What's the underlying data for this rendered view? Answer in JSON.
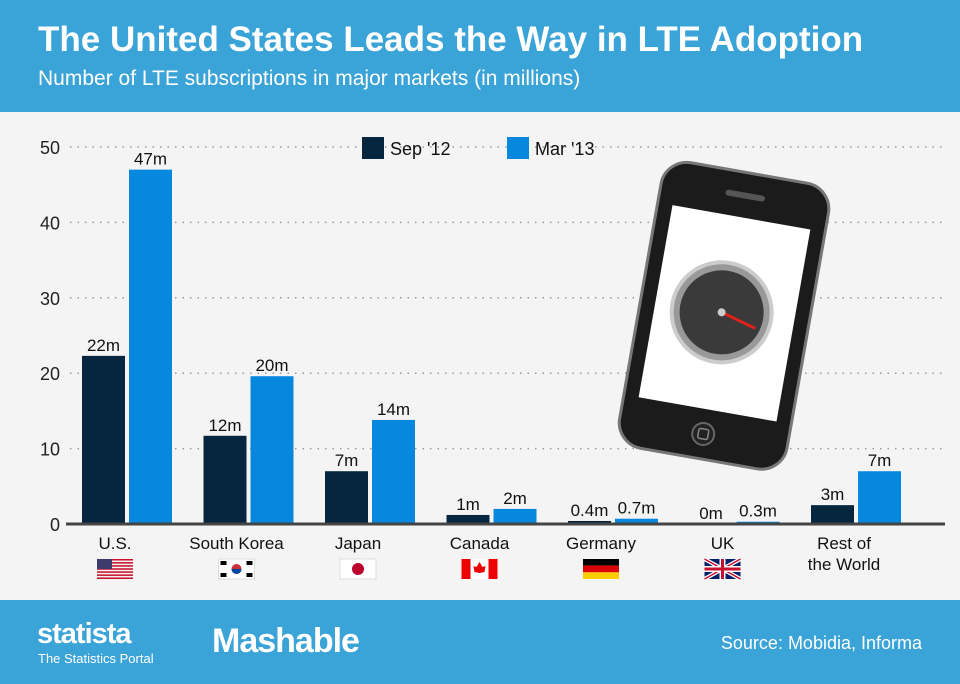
{
  "header": {
    "title": "The United States Leads the Way in LTE Adoption",
    "subtitle": "Number of LTE subscriptions in major markets (in millions)"
  },
  "footer": {
    "brand": "statista",
    "brand_tagline": "The Statistics Portal",
    "partner": "Mashable",
    "source": "Source: Mobidia, Informa"
  },
  "chart_data": {
    "type": "bar",
    "title": "The United States Leads the Way in LTE Adoption",
    "subtitle": "Number of LTE subscriptions in major markets (in millions)",
    "categories": [
      "U.S.",
      "South Korea",
      "Japan",
      "Canada",
      "Germany",
      "UK",
      "Rest of the World"
    ],
    "category_flags": [
      "us-flag",
      "south-korea-flag",
      "japan-flag",
      "canada-flag",
      "germany-flag",
      "uk-flag",
      ""
    ],
    "series": [
      {
        "name": "Sep '12",
        "color": "#05263e",
        "values": [
          22.3,
          11.7,
          7,
          1.2,
          0.4,
          0,
          2.5
        ],
        "labels": [
          "22m",
          "12m",
          "7m",
          "1m",
          "0.4m",
          "0m",
          "3m"
        ]
      },
      {
        "name": "Mar '13",
        "color": "#0588dd",
        "values": [
          47,
          19.6,
          13.8,
          2,
          0.7,
          0.3,
          7
        ],
        "labels": [
          "47m",
          "20m",
          "14m",
          "2m",
          "0.7m",
          "0.3m",
          "7m"
        ]
      }
    ],
    "yticks": [
      0,
      10,
      20,
      30,
      40,
      50
    ],
    "ylim": [
      0,
      50
    ],
    "grid": true,
    "legend": "top-center"
  }
}
